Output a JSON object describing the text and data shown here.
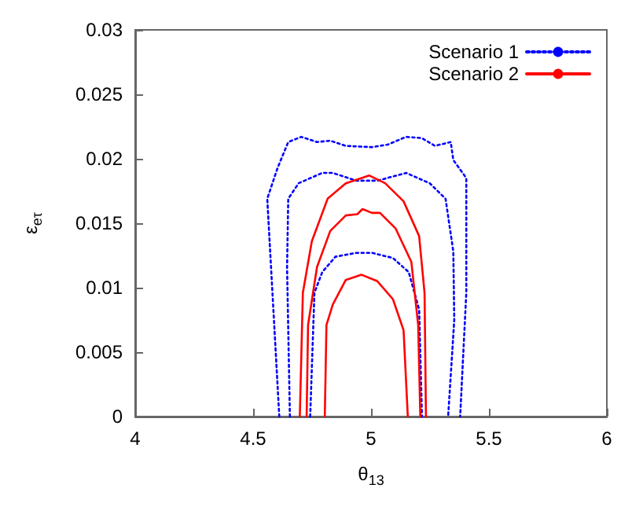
{
  "chart_data": {
    "type": "line",
    "xlabel": "θ$_{13}$",
    "ylabel": "ε$_{eτ}$",
    "xlim": [
      4,
      6
    ],
    "xticks": [
      4,
      4.5,
      5,
      5.5,
      6
    ],
    "ylim": [
      0,
      0.03
    ],
    "yticks": [
      0,
      0.005,
      0.01,
      0.015,
      0.02,
      0.025,
      0.03
    ],
    "grid": false,
    "legend": "top right",
    "marker": "none",
    "series": [
      {
        "name": "Scenario 1",
        "color": "#0000ff",
        "line_style": "dotted",
        "x": [
          4.611,
          4.582,
          4.56,
          4.582,
          4.604,
          4.649,
          4.704,
          4.771,
          4.827,
          4.893,
          5.004,
          5.071,
          5.149,
          5.216,
          5.271,
          5.338,
          5.349,
          5.404,
          5.404,
          5.378
        ],
        "values": [
          0,
          0.0096,
          0.0169,
          0.0181,
          0.0193,
          0.0213,
          0.0217,
          0.0213,
          0.0214,
          0.021,
          0.0209,
          0.0211,
          0.0217,
          0.0216,
          0.021,
          0.0213,
          0.0199,
          0.0185,
          0.0096,
          0
        ]
      },
      {
        "color": "#0000ff",
        "line_style": "dotted",
        "x": [
          4.656,
          4.644,
          4.649,
          4.693,
          4.793,
          4.838,
          4.938,
          5.027,
          5.149,
          5.249,
          5.316,
          5.349,
          5.353,
          5.327
        ],
        "values": [
          0,
          0.0116,
          0.0169,
          0.0181,
          0.0189,
          0.0189,
          0.0183,
          0.0183,
          0.0189,
          0.0181,
          0.0169,
          0.0128,
          0.0075,
          0
        ]
      },
      {
        "color": "#0000ff",
        "line_style": "dotted",
        "x": [
          4.742,
          4.76,
          4.793,
          4.849,
          4.938,
          5.004,
          5.093,
          5.16,
          5.204,
          5.216
        ],
        "values": [
          0,
          0.0096,
          0.0112,
          0.0124,
          0.0127,
          0.0127,
          0.0123,
          0.0112,
          0.0083,
          0
        ]
      },
      {
        "name": "Scenario 2",
        "color": "#ff0000",
        "line_style": "solid",
        "x": [
          4.698,
          4.711,
          4.749,
          4.816,
          4.893,
          4.993,
          5.06,
          5.138,
          5.204,
          5.227,
          5.233
        ],
        "values": [
          0,
          0.0096,
          0.0136,
          0.0169,
          0.0181,
          0.0187,
          0.0181,
          0.0167,
          0.014,
          0.0096,
          0
        ]
      },
      {
        "color": "#ff0000",
        "line_style": "solid",
        "x": [
          4.727,
          4.733,
          4.771,
          4.827,
          4.893,
          4.942,
          4.964,
          5.004,
          5.038,
          5.104,
          5.171,
          5.2,
          5.209
        ],
        "values": [
          0,
          0.0071,
          0.0116,
          0.0144,
          0.0156,
          0.0157,
          0.0161,
          0.0158,
          0.0158,
          0.0146,
          0.012,
          0.0071,
          0
        ]
      },
      {
        "color": "#ff0000",
        "line_style": "solid",
        "x": [
          4.804,
          4.811,
          4.838,
          4.893,
          4.96,
          5.027,
          5.093,
          5.138,
          5.156
        ],
        "values": [
          0,
          0.0071,
          0.0087,
          0.0106,
          0.011,
          0.0105,
          0.0091,
          0.0067,
          0
        ]
      }
    ]
  }
}
